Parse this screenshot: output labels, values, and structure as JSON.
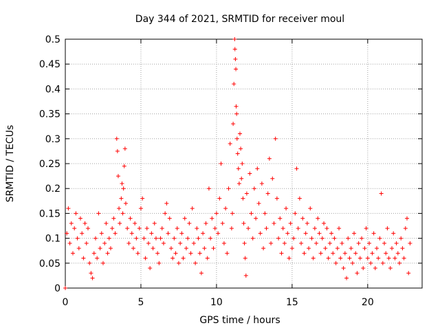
{
  "chart_data": {
    "type": "scatter",
    "title": "Day 344 of 2021, SRMTID for receiver moul",
    "xlabel": "GPS time / hours",
    "ylabel": "SRMTID / TECUs",
    "xlim": [
      0,
      23.6
    ],
    "ylim": [
      0,
      0.5
    ],
    "x_ticks": [
      0,
      5,
      10,
      15,
      20
    ],
    "x_tick_labels": [
      "0",
      "5",
      "10",
      "15",
      "20"
    ],
    "y_ticks": [
      0,
      0.05,
      0.1,
      0.15,
      0.2,
      0.25,
      0.3,
      0.35,
      0.4,
      0.45,
      0.5
    ],
    "y_tick_labels": [
      "0",
      "0.05",
      "0.1",
      "0.15",
      "0.2",
      "0.25",
      "0.3",
      "0.35",
      "0.4",
      "0.45",
      "0.5"
    ],
    "grid": true,
    "legend": "none",
    "marker": "plus",
    "series_color": "#ff0000",
    "points": [
      [
        0.0,
        0.0
      ],
      [
        0.1,
        0.11
      ],
      [
        0.2,
        0.16
      ],
      [
        0.3,
        0.09
      ],
      [
        0.4,
        0.13
      ],
      [
        0.5,
        0.07
      ],
      [
        0.6,
        0.12
      ],
      [
        0.7,
        0.15
      ],
      [
        0.8,
        0.1
      ],
      [
        0.9,
        0.08
      ],
      [
        1.0,
        0.14
      ],
      [
        1.1,
        0.11
      ],
      [
        1.2,
        0.06
      ],
      [
        1.3,
        0.13
      ],
      [
        1.4,
        0.09
      ],
      [
        1.5,
        0.12
      ],
      [
        1.6,
        0.05
      ],
      [
        1.7,
        0.03
      ],
      [
        1.8,
        0.02
      ],
      [
        1.9,
        0.07
      ],
      [
        2.0,
        0.1
      ],
      [
        2.1,
        0.06
      ],
      [
        2.2,
        0.15
      ],
      [
        2.3,
        0.08
      ],
      [
        2.4,
        0.11
      ],
      [
        2.5,
        0.05
      ],
      [
        2.6,
        0.09
      ],
      [
        2.7,
        0.13
      ],
      [
        2.8,
        0.07
      ],
      [
        2.9,
        0.1
      ],
      [
        3.0,
        0.08
      ],
      [
        3.1,
        0.12
      ],
      [
        3.2,
        0.14
      ],
      [
        3.3,
        0.11
      ],
      [
        3.4,
        0.3
      ],
      [
        3.45,
        0.275
      ],
      [
        3.5,
        0.225
      ],
      [
        3.55,
        0.16
      ],
      [
        3.6,
        0.13
      ],
      [
        3.7,
        0.18
      ],
      [
        3.75,
        0.21
      ],
      [
        3.8,
        0.15
      ],
      [
        3.85,
        0.2
      ],
      [
        3.9,
        0.245
      ],
      [
        3.95,
        0.28
      ],
      [
        4.0,
        0.17
      ],
      [
        4.1,
        0.12
      ],
      [
        4.2,
        0.09
      ],
      [
        4.3,
        0.14
      ],
      [
        4.4,
        0.11
      ],
      [
        4.5,
        0.08
      ],
      [
        4.6,
        0.13
      ],
      [
        4.7,
        0.1
      ],
      [
        4.8,
        0.07
      ],
      [
        4.9,
        0.12
      ],
      [
        5.0,
        0.16
      ],
      [
        5.1,
        0.18
      ],
      [
        5.2,
        0.1
      ],
      [
        5.3,
        0.06
      ],
      [
        5.4,
        0.12
      ],
      [
        5.5,
        0.09
      ],
      [
        5.6,
        0.04
      ],
      [
        5.7,
        0.11
      ],
      [
        5.8,
        0.08
      ],
      [
        5.9,
        0.13
      ],
      [
        6.0,
        0.1
      ],
      [
        6.1,
        0.07
      ],
      [
        6.2,
        0.05
      ],
      [
        6.3,
        0.1
      ],
      [
        6.4,
        0.12
      ],
      [
        6.5,
        0.09
      ],
      [
        6.6,
        0.15
      ],
      [
        6.7,
        0.17
      ],
      [
        6.8,
        0.11
      ],
      [
        6.9,
        0.14
      ],
      [
        7.0,
        0.08
      ],
      [
        7.1,
        0.06
      ],
      [
        7.2,
        0.1
      ],
      [
        7.3,
        0.07
      ],
      [
        7.4,
        0.12
      ],
      [
        7.5,
        0.05
      ],
      [
        7.6,
        0.09
      ],
      [
        7.7,
        0.11
      ],
      [
        7.8,
        0.06
      ],
      [
        7.9,
        0.14
      ],
      [
        8.0,
        0.08
      ],
      [
        8.1,
        0.1
      ],
      [
        8.2,
        0.13
      ],
      [
        8.3,
        0.07
      ],
      [
        8.4,
        0.16
      ],
      [
        8.5,
        0.09
      ],
      [
        8.6,
        0.05
      ],
      [
        8.7,
        0.12
      ],
      [
        8.8,
        0.1
      ],
      [
        8.9,
        0.07
      ],
      [
        9.0,
        0.03
      ],
      [
        9.1,
        0.11
      ],
      [
        9.2,
        0.08
      ],
      [
        9.3,
        0.13
      ],
      [
        9.4,
        0.06
      ],
      [
        9.5,
        0.2
      ],
      [
        9.6,
        0.1
      ],
      [
        9.7,
        0.14
      ],
      [
        9.8,
        0.08
      ],
      [
        9.9,
        0.12
      ],
      [
        10.0,
        0.15
      ],
      [
        10.1,
        0.11
      ],
      [
        10.2,
        0.18
      ],
      [
        10.3,
        0.25
      ],
      [
        10.4,
        0.13
      ],
      [
        10.5,
        0.09
      ],
      [
        10.6,
        0.16
      ],
      [
        10.7,
        0.07
      ],
      [
        10.8,
        0.2
      ],
      [
        10.9,
        0.29
      ],
      [
        11.0,
        0.12
      ],
      [
        11.05,
        0.15
      ],
      [
        11.1,
        0.33
      ],
      [
        11.15,
        0.41
      ],
      [
        11.2,
        0.5
      ],
      [
        11.22,
        0.48
      ],
      [
        11.25,
        0.46
      ],
      [
        11.28,
        0.44
      ],
      [
        11.3,
        0.365
      ],
      [
        11.33,
        0.35
      ],
      [
        11.36,
        0.3
      ],
      [
        11.4,
        0.27
      ],
      [
        11.45,
        0.24
      ],
      [
        11.5,
        0.21
      ],
      [
        11.55,
        0.31
      ],
      [
        11.6,
        0.28
      ],
      [
        11.65,
        0.22
      ],
      [
        11.7,
        0.25
      ],
      [
        11.75,
        0.18
      ],
      [
        11.8,
        0.13
      ],
      [
        11.85,
        0.09
      ],
      [
        11.9,
        0.06
      ],
      [
        11.95,
        0.025
      ],
      [
        12.0,
        0.19
      ],
      [
        12.1,
        0.12
      ],
      [
        12.2,
        0.23
      ],
      [
        12.3,
        0.15
      ],
      [
        12.4,
        0.1
      ],
      [
        12.5,
        0.2
      ],
      [
        12.6,
        0.14
      ],
      [
        12.7,
        0.24
      ],
      [
        12.8,
        0.17
      ],
      [
        12.9,
        0.11
      ],
      [
        13.0,
        0.21
      ],
      [
        13.1,
        0.08
      ],
      [
        13.2,
        0.15
      ],
      [
        13.3,
        0.12
      ],
      [
        13.4,
        0.19
      ],
      [
        13.5,
        0.26
      ],
      [
        13.6,
        0.09
      ],
      [
        13.7,
        0.22
      ],
      [
        13.8,
        0.13
      ],
      [
        13.9,
        0.3
      ],
      [
        14.0,
        0.18
      ],
      [
        14.1,
        0.1
      ],
      [
        14.2,
        0.14
      ],
      [
        14.3,
        0.07
      ],
      [
        14.4,
        0.12
      ],
      [
        14.5,
        0.09
      ],
      [
        14.6,
        0.16
      ],
      [
        14.7,
        0.11
      ],
      [
        14.8,
        0.06
      ],
      [
        14.9,
        0.13
      ],
      [
        15.0,
        0.08
      ],
      [
        15.1,
        0.1
      ],
      [
        15.2,
        0.15
      ],
      [
        15.3,
        0.24
      ],
      [
        15.4,
        0.12
      ],
      [
        15.5,
        0.18
      ],
      [
        15.6,
        0.09
      ],
      [
        15.7,
        0.14
      ],
      [
        15.8,
        0.07
      ],
      [
        15.9,
        0.11
      ],
      [
        16.0,
        0.13
      ],
      [
        16.1,
        0.08
      ],
      [
        16.2,
        0.16
      ],
      [
        16.3,
        0.1
      ],
      [
        16.4,
        0.06
      ],
      [
        16.5,
        0.12
      ],
      [
        16.6,
        0.09
      ],
      [
        16.7,
        0.14
      ],
      [
        16.8,
        0.11
      ],
      [
        16.9,
        0.07
      ],
      [
        17.0,
        0.1
      ],
      [
        17.1,
        0.13
      ],
      [
        17.2,
        0.08
      ],
      [
        17.3,
        0.12
      ],
      [
        17.4,
        0.06
      ],
      [
        17.5,
        0.09
      ],
      [
        17.6,
        0.11
      ],
      [
        17.7,
        0.07
      ],
      [
        17.8,
        0.1
      ],
      [
        17.9,
        0.05
      ],
      [
        18.0,
        0.08
      ],
      [
        18.1,
        0.12
      ],
      [
        18.2,
        0.06
      ],
      [
        18.3,
        0.09
      ],
      [
        18.4,
        0.04
      ],
      [
        18.5,
        0.07
      ],
      [
        18.6,
        0.02
      ],
      [
        18.7,
        0.1
      ],
      [
        18.8,
        0.06
      ],
      [
        18.9,
        0.08
      ],
      [
        19.0,
        0.05
      ],
      [
        19.1,
        0.11
      ],
      [
        19.2,
        0.07
      ],
      [
        19.3,
        0.03
      ],
      [
        19.4,
        0.09
      ],
      [
        19.5,
        0.06
      ],
      [
        19.6,
        0.1
      ],
      [
        19.7,
        0.04
      ],
      [
        19.8,
        0.08
      ],
      [
        19.9,
        0.12
      ],
      [
        20.0,
        0.06
      ],
      [
        20.1,
        0.09
      ],
      [
        20.2,
        0.05
      ],
      [
        20.3,
        0.07
      ],
      [
        20.4,
        0.11
      ],
      [
        20.5,
        0.04
      ],
      [
        20.6,
        0.08
      ],
      [
        20.7,
        0.06
      ],
      [
        20.8,
        0.1
      ],
      [
        20.9,
        0.19
      ],
      [
        21.0,
        0.05
      ],
      [
        21.1,
        0.09
      ],
      [
        21.2,
        0.07
      ],
      [
        21.3,
        0.12
      ],
      [
        21.4,
        0.06
      ],
      [
        21.5,
        0.04
      ],
      [
        21.6,
        0.08
      ],
      [
        21.7,
        0.11
      ],
      [
        21.8,
        0.06
      ],
      [
        21.9,
        0.09
      ],
      [
        22.0,
        0.07
      ],
      [
        22.1,
        0.05
      ],
      [
        22.2,
        0.1
      ],
      [
        22.3,
        0.08
      ],
      [
        22.4,
        0.06
      ],
      [
        22.5,
        0.12
      ],
      [
        22.6,
        0.14
      ],
      [
        22.7,
        0.03
      ],
      [
        22.8,
        0.09
      ]
    ]
  }
}
